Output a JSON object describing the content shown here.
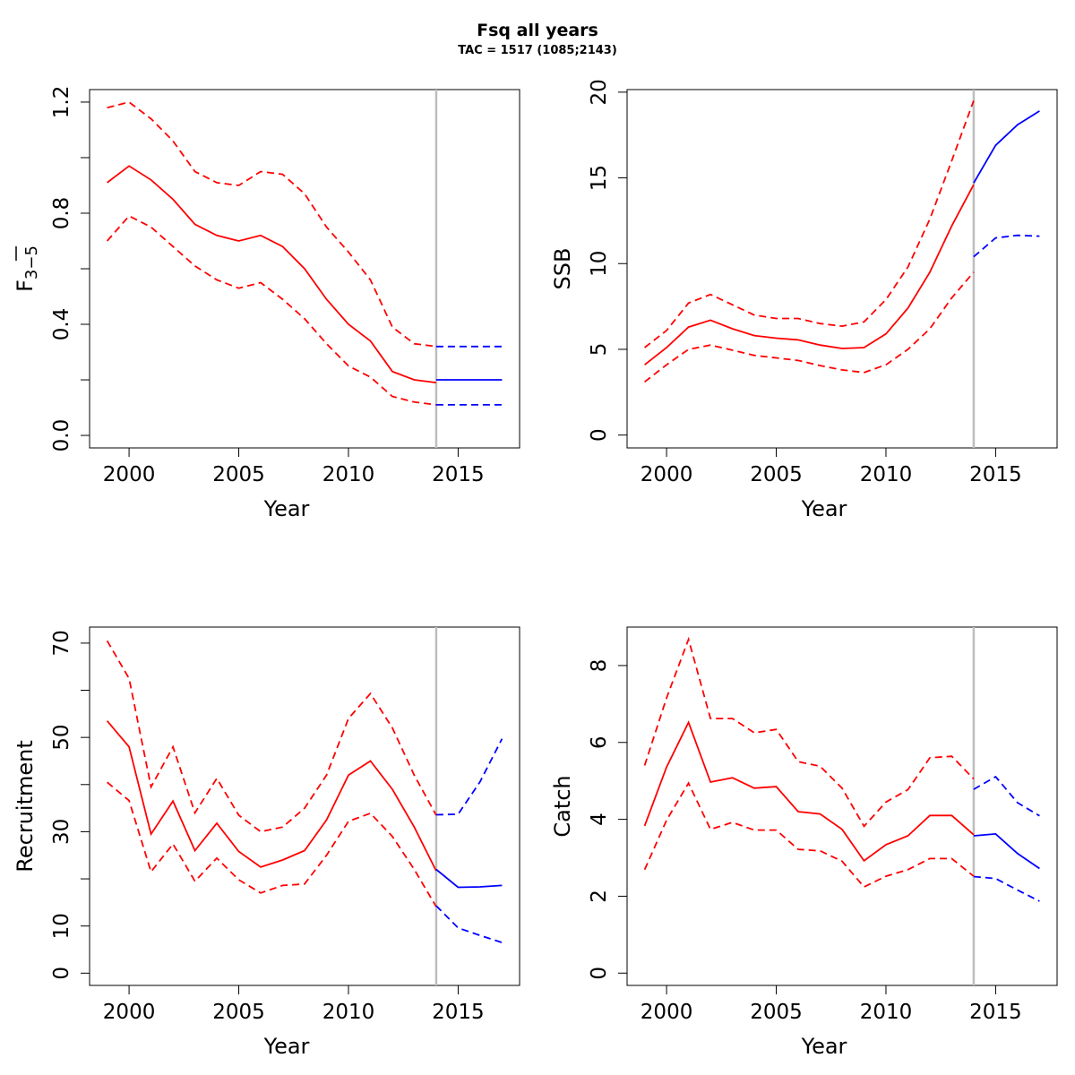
{
  "title": "Fsq all years",
  "subtitle": "TAC = 1517 (1085;2143)",
  "colors": {
    "estimate": "#ff0000",
    "forecast": "#0000ff",
    "divider": "#bebebe"
  },
  "chart_data": [
    {
      "type": "line",
      "name": "fbar",
      "xlabel": "Year",
      "ylabel_main": "F",
      "ylabel_sub": "3−5",
      "xlim": [
        1998.2,
        2017.8
      ],
      "ylim": [
        -0.045,
        1.245
      ],
      "xticks": [
        2000,
        2005,
        2010,
        2015
      ],
      "xtick_labels": [
        "2000",
        "2005",
        "2010",
        "2015"
      ],
      "yticks": [
        0,
        0.2,
        0.4,
        0.6,
        0.8,
        1.0,
        1.2
      ],
      "ytick_labels": [
        "0.0",
        "",
        "0.4",
        "",
        "0.8",
        "",
        "1.2"
      ],
      "divider_x": 2014,
      "series": [
        {
          "role": "estimate",
          "style": "solid",
          "x": [
            1999,
            2000,
            2001,
            2002,
            2003,
            2004,
            2005,
            2006,
            2007,
            2008,
            2009,
            2010,
            2011,
            2012,
            2013,
            2014
          ],
          "values": [
            0.91,
            0.97,
            0.92,
            0.85,
            0.76,
            0.72,
            0.7,
            0.72,
            0.68,
            0.6,
            0.49,
            0.4,
            0.34,
            0.23,
            0.2,
            0.19
          ]
        },
        {
          "role": "estimate",
          "style": "dashed",
          "x": [
            1999,
            2000,
            2001,
            2002,
            2003,
            2004,
            2005,
            2006,
            2007,
            2008,
            2009,
            2010,
            2011,
            2012,
            2013,
            2014
          ],
          "values": [
            1.18,
            1.2,
            1.14,
            1.06,
            0.95,
            0.91,
            0.9,
            0.95,
            0.94,
            0.87,
            0.75,
            0.66,
            0.56,
            0.39,
            0.33,
            0.32
          ]
        },
        {
          "role": "estimate",
          "style": "dashed",
          "x": [
            1999,
            2000,
            2001,
            2002,
            2003,
            2004,
            2005,
            2006,
            2007,
            2008,
            2009,
            2010,
            2011,
            2012,
            2013,
            2014
          ],
          "values": [
            0.7,
            0.79,
            0.75,
            0.68,
            0.61,
            0.56,
            0.53,
            0.55,
            0.49,
            0.42,
            0.33,
            0.25,
            0.21,
            0.14,
            0.12,
            0.11
          ]
        },
        {
          "role": "forecast",
          "style": "solid",
          "x": [
            2014,
            2015,
            2016,
            2017
          ],
          "values": [
            0.2,
            0.2,
            0.2,
            0.2
          ]
        },
        {
          "role": "forecast",
          "style": "dashed",
          "x": [
            2014,
            2015,
            2016,
            2017
          ],
          "values": [
            0.32,
            0.32,
            0.32,
            0.32
          ]
        },
        {
          "role": "forecast",
          "style": "dashed",
          "x": [
            2014,
            2015,
            2016,
            2017
          ],
          "values": [
            0.11,
            0.11,
            0.11,
            0.11
          ]
        }
      ]
    },
    {
      "type": "line",
      "name": "ssb",
      "xlabel": "Year",
      "ylabel_main": "SSB",
      "ylabel_sub": "",
      "xlim": [
        1998.2,
        2017.8
      ],
      "ylim": [
        -0.75,
        20.15
      ],
      "xticks": [
        2000,
        2005,
        2010,
        2015
      ],
      "xtick_labels": [
        "2000",
        "2005",
        "2010",
        "2015"
      ],
      "yticks": [
        0,
        5,
        10,
        15,
        20
      ],
      "ytick_labels": [
        "0",
        "5",
        "10",
        "15",
        "20"
      ],
      "divider_x": 2014,
      "series": [
        {
          "role": "estimate",
          "style": "solid",
          "x": [
            1999,
            2000,
            2001,
            2002,
            2003,
            2004,
            2005,
            2006,
            2007,
            2008,
            2009,
            2010,
            2011,
            2012,
            2013,
            2014
          ],
          "values": [
            4.1,
            5.1,
            6.3,
            6.7,
            6.2,
            5.8,
            5.65,
            5.55,
            5.25,
            5.05,
            5.1,
            5.9,
            7.4,
            9.5,
            12.2,
            14.6
          ]
        },
        {
          "role": "estimate",
          "style": "dashed",
          "x": [
            1999,
            2000,
            2001,
            2002,
            2003,
            2004,
            2005,
            2006,
            2007,
            2008,
            2009,
            2010,
            2011,
            2012,
            2013,
            2014
          ],
          "values": [
            5.1,
            6.1,
            7.7,
            8.2,
            7.6,
            7.0,
            6.8,
            6.8,
            6.5,
            6.35,
            6.6,
            7.9,
            9.8,
            12.6,
            16.0,
            19.5
          ]
        },
        {
          "role": "estimate",
          "style": "dashed",
          "x": [
            1999,
            2000,
            2001,
            2002,
            2003,
            2004,
            2005,
            2006,
            2007,
            2008,
            2009,
            2010,
            2011,
            2012,
            2013,
            2014
          ],
          "values": [
            3.1,
            4.1,
            5.0,
            5.25,
            4.95,
            4.65,
            4.5,
            4.35,
            4.05,
            3.8,
            3.65,
            4.1,
            5.0,
            6.2,
            8.0,
            9.5
          ]
        },
        {
          "role": "forecast",
          "style": "solid",
          "x": [
            2014,
            2015,
            2016,
            2017
          ],
          "values": [
            14.7,
            16.9,
            18.1,
            18.9
          ]
        },
        {
          "role": "forecast",
          "style": "dashed",
          "x": [
            2014,
            2015,
            2016,
            2017
          ],
          "values": [
            10.4,
            11.5,
            11.65,
            11.6
          ]
        }
      ]
    },
    {
      "type": "line",
      "name": "recruitment",
      "xlabel": "Year",
      "ylabel_main": "Recruitment",
      "ylabel_sub": "",
      "xlim": [
        1998.2,
        2017.8
      ],
      "ylim": [
        -2.6,
        73.4
      ],
      "xticks": [
        2000,
        2005,
        2010,
        2015
      ],
      "xtick_labels": [
        "2000",
        "2005",
        "2010",
        "2015"
      ],
      "yticks": [
        0,
        10,
        20,
        30,
        40,
        50,
        60,
        70
      ],
      "ytick_labels": [
        "0",
        "10",
        "",
        "30",
        "",
        "50",
        "",
        "70"
      ],
      "divider_x": 2014,
      "series": [
        {
          "role": "estimate",
          "style": "solid",
          "x": [
            1999,
            2000,
            2001,
            2002,
            2003,
            2004,
            2005,
            2006,
            2007,
            2008,
            2009,
            2010,
            2011,
            2012,
            2013,
            2014
          ],
          "values": [
            53.5,
            48,
            29.5,
            36.5,
            26,
            31.8,
            25.8,
            22.5,
            24,
            26,
            32.5,
            42,
            45,
            39,
            31,
            21.7
          ]
        },
        {
          "role": "estimate",
          "style": "dashed",
          "x": [
            1999,
            2000,
            2001,
            2002,
            2003,
            2004,
            2005,
            2006,
            2007,
            2008,
            2009,
            2010,
            2011,
            2012,
            2013,
            2014
          ],
          "values": [
            70.5,
            62.5,
            39.5,
            48,
            34,
            41.3,
            33.5,
            30,
            31,
            35,
            42,
            54,
            59.3,
            52,
            42,
            33.5
          ]
        },
        {
          "role": "estimate",
          "style": "dashed",
          "x": [
            1999,
            2000,
            2001,
            2002,
            2003,
            2004,
            2005,
            2006,
            2007,
            2008,
            2009,
            2010,
            2011,
            2012,
            2013,
            2014
          ],
          "values": [
            40.5,
            36.6,
            21.5,
            27.4,
            19.5,
            24.4,
            19.8,
            17,
            18.6,
            18.9,
            25,
            32.2,
            33.9,
            29,
            22,
            14.1
          ]
        },
        {
          "role": "forecast",
          "style": "solid",
          "x": [
            2014,
            2015,
            2016,
            2017
          ],
          "values": [
            22,
            18.2,
            18.3,
            18.6
          ]
        },
        {
          "role": "forecast",
          "style": "dashed",
          "x": [
            2014,
            2015,
            2016,
            2017
          ],
          "values": [
            33.6,
            33.7,
            40.6,
            49.7
          ]
        },
        {
          "role": "forecast",
          "style": "dashed",
          "x": [
            2014,
            2015,
            2016,
            2017
          ],
          "values": [
            14.3,
            9.6,
            8,
            6.5
          ]
        }
      ]
    },
    {
      "type": "line",
      "name": "catch",
      "xlabel": "Year",
      "ylabel_main": "Catch",
      "ylabel_sub": "",
      "xlim": [
        1998.2,
        2017.8
      ],
      "ylim": [
        -0.32,
        9.0
      ],
      "xticks": [
        2000,
        2005,
        2010,
        2015
      ],
      "xtick_labels": [
        "2000",
        "2005",
        "2010",
        "2015"
      ],
      "yticks": [
        0,
        2,
        4,
        6,
        8
      ],
      "ytick_labels": [
        "0",
        "2",
        "4",
        "6",
        "8"
      ],
      "divider_x": 2014,
      "series": [
        {
          "role": "estimate",
          "style": "solid",
          "x": [
            1999,
            2000,
            2001,
            2002,
            2003,
            2004,
            2005,
            2006,
            2007,
            2008,
            2009,
            2010,
            2011,
            2012,
            2013,
            2014
          ],
          "values": [
            3.83,
            5.36,
            6.52,
            4.97,
            5.08,
            4.81,
            4.85,
            4.2,
            4.14,
            3.74,
            2.92,
            3.34,
            3.57,
            4.1,
            4.1,
            3.6
          ]
        },
        {
          "role": "estimate",
          "style": "dashed",
          "x": [
            1999,
            2000,
            2001,
            2002,
            2003,
            2004,
            2005,
            2006,
            2007,
            2008,
            2009,
            2010,
            2011,
            2012,
            2013,
            2014
          ],
          "values": [
            5.4,
            7.16,
            8.68,
            6.62,
            6.62,
            6.25,
            6.34,
            5.5,
            5.38,
            4.81,
            3.82,
            4.45,
            4.77,
            5.6,
            5.64,
            5.05
          ]
        },
        {
          "role": "estimate",
          "style": "dashed",
          "x": [
            1999,
            2000,
            2001,
            2002,
            2003,
            2004,
            2005,
            2006,
            2007,
            2008,
            2009,
            2010,
            2011,
            2012,
            2013,
            2014
          ],
          "values": [
            2.69,
            3.98,
            4.94,
            3.74,
            3.92,
            3.72,
            3.72,
            3.22,
            3.18,
            2.91,
            2.24,
            2.52,
            2.69,
            2.98,
            2.98,
            2.52
          ]
        },
        {
          "role": "forecast",
          "style": "solid",
          "x": [
            2014,
            2015,
            2016,
            2017
          ],
          "values": [
            3.57,
            3.62,
            3.11,
            2.72
          ]
        },
        {
          "role": "forecast",
          "style": "dashed",
          "x": [
            2014,
            2015,
            2016,
            2017
          ],
          "values": [
            4.78,
            5.11,
            4.43,
            4.09
          ]
        },
        {
          "role": "forecast",
          "style": "dashed",
          "x": [
            2014,
            2015,
            2016,
            2017
          ],
          "values": [
            2.51,
            2.46,
            2.16,
            1.87
          ]
        }
      ]
    }
  ]
}
